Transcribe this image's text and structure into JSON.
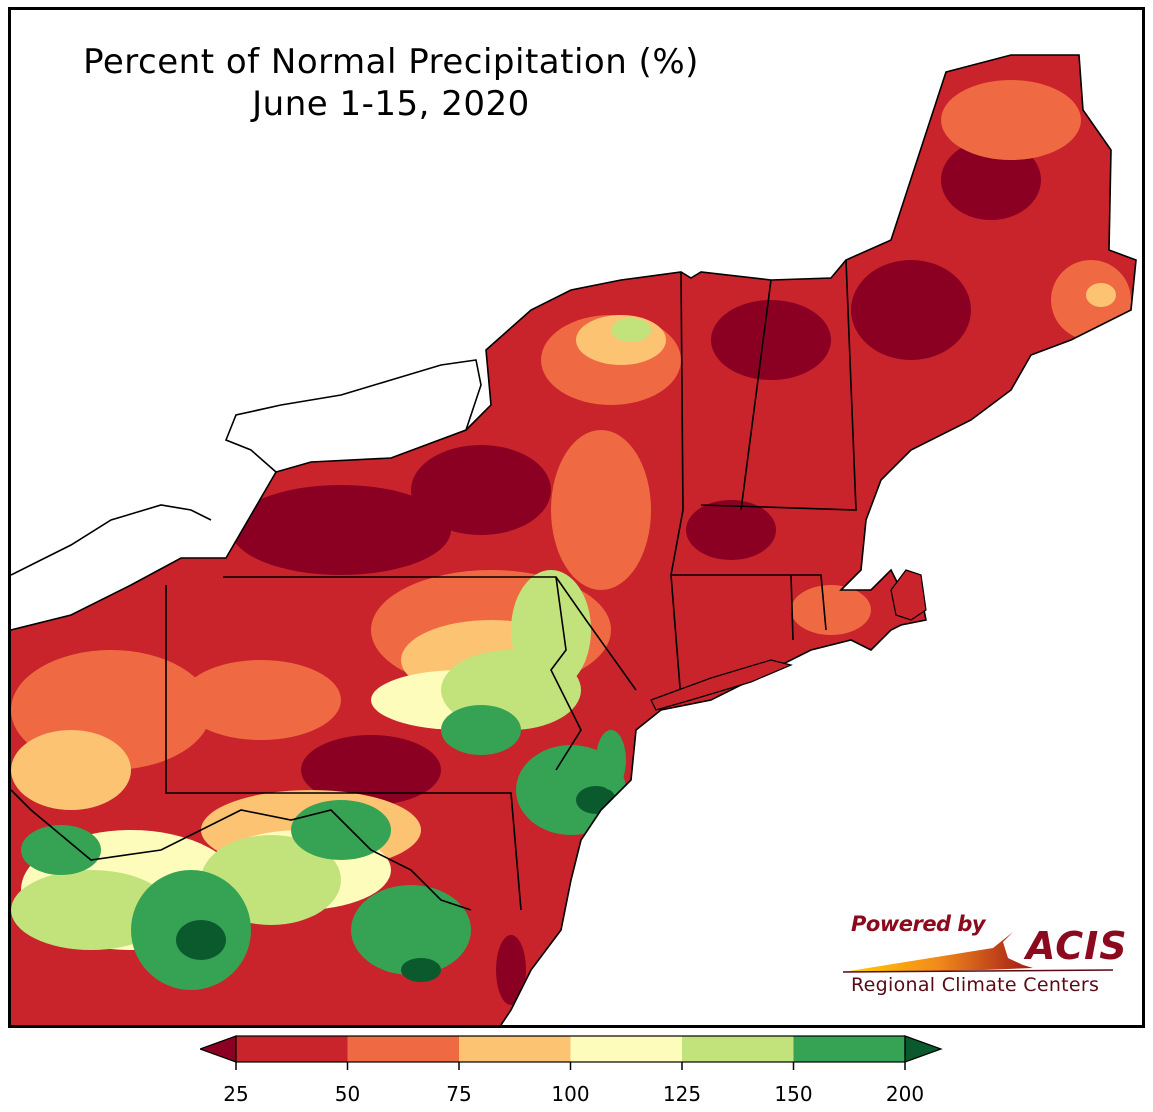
{
  "title": {
    "line1": "Percent of Normal Precipitation (%)",
    "line2": "June 1-15, 2020"
  },
  "legend": {
    "ticks": [
      "25",
      "50",
      "75",
      "100",
      "125",
      "150",
      "200"
    ],
    "bins": [
      {
        "range": "<25",
        "color": "#8b0022"
      },
      {
        "range": "25-50",
        "color": "#c9232c"
      },
      {
        "range": "50-75",
        "color": "#ef6a43"
      },
      {
        "range": "75-100",
        "color": "#fcc373"
      },
      {
        "range": "100-125",
        "color": "#fefcbb"
      },
      {
        "range": "125-150",
        "color": "#c2e37c"
      },
      {
        "range": "150-200",
        "color": "#36a254"
      },
      {
        "range": ">200",
        "color": "#0b5a2e"
      }
    ]
  },
  "logo": {
    "powered_by": "Powered by",
    "name": "ACIS",
    "subtitle": "Regional Climate Centers"
  }
}
